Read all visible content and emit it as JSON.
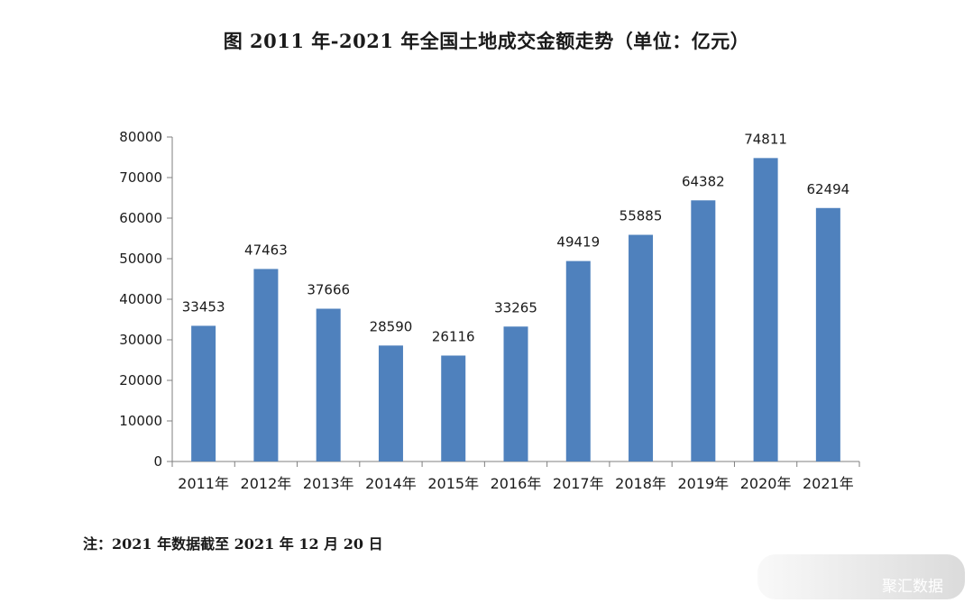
{
  "chart_data": {
    "type": "bar",
    "title": "图 2011 年-2021 年全国土地成交金额走势（单位：亿元）",
    "categories": [
      "2011年",
      "2012年",
      "2013年",
      "2014年",
      "2015年",
      "2016年",
      "2017年",
      "2018年",
      "2019年",
      "2020年",
      "2021年"
    ],
    "values": [
      33453,
      47463,
      37666,
      28590,
      26116,
      33265,
      49419,
      55885,
      64382,
      74811,
      62494
    ],
    "yticks": [
      0,
      10000,
      20000,
      30000,
      40000,
      50000,
      60000,
      70000,
      80000
    ],
    "ylim": [
      0,
      80000
    ],
    "bar_color": "#4f81bd",
    "grid": false,
    "legend": "none"
  },
  "note": "注：2021 年数据截至 2021 年 12 月 20 日",
  "watermark": "聚汇数据"
}
